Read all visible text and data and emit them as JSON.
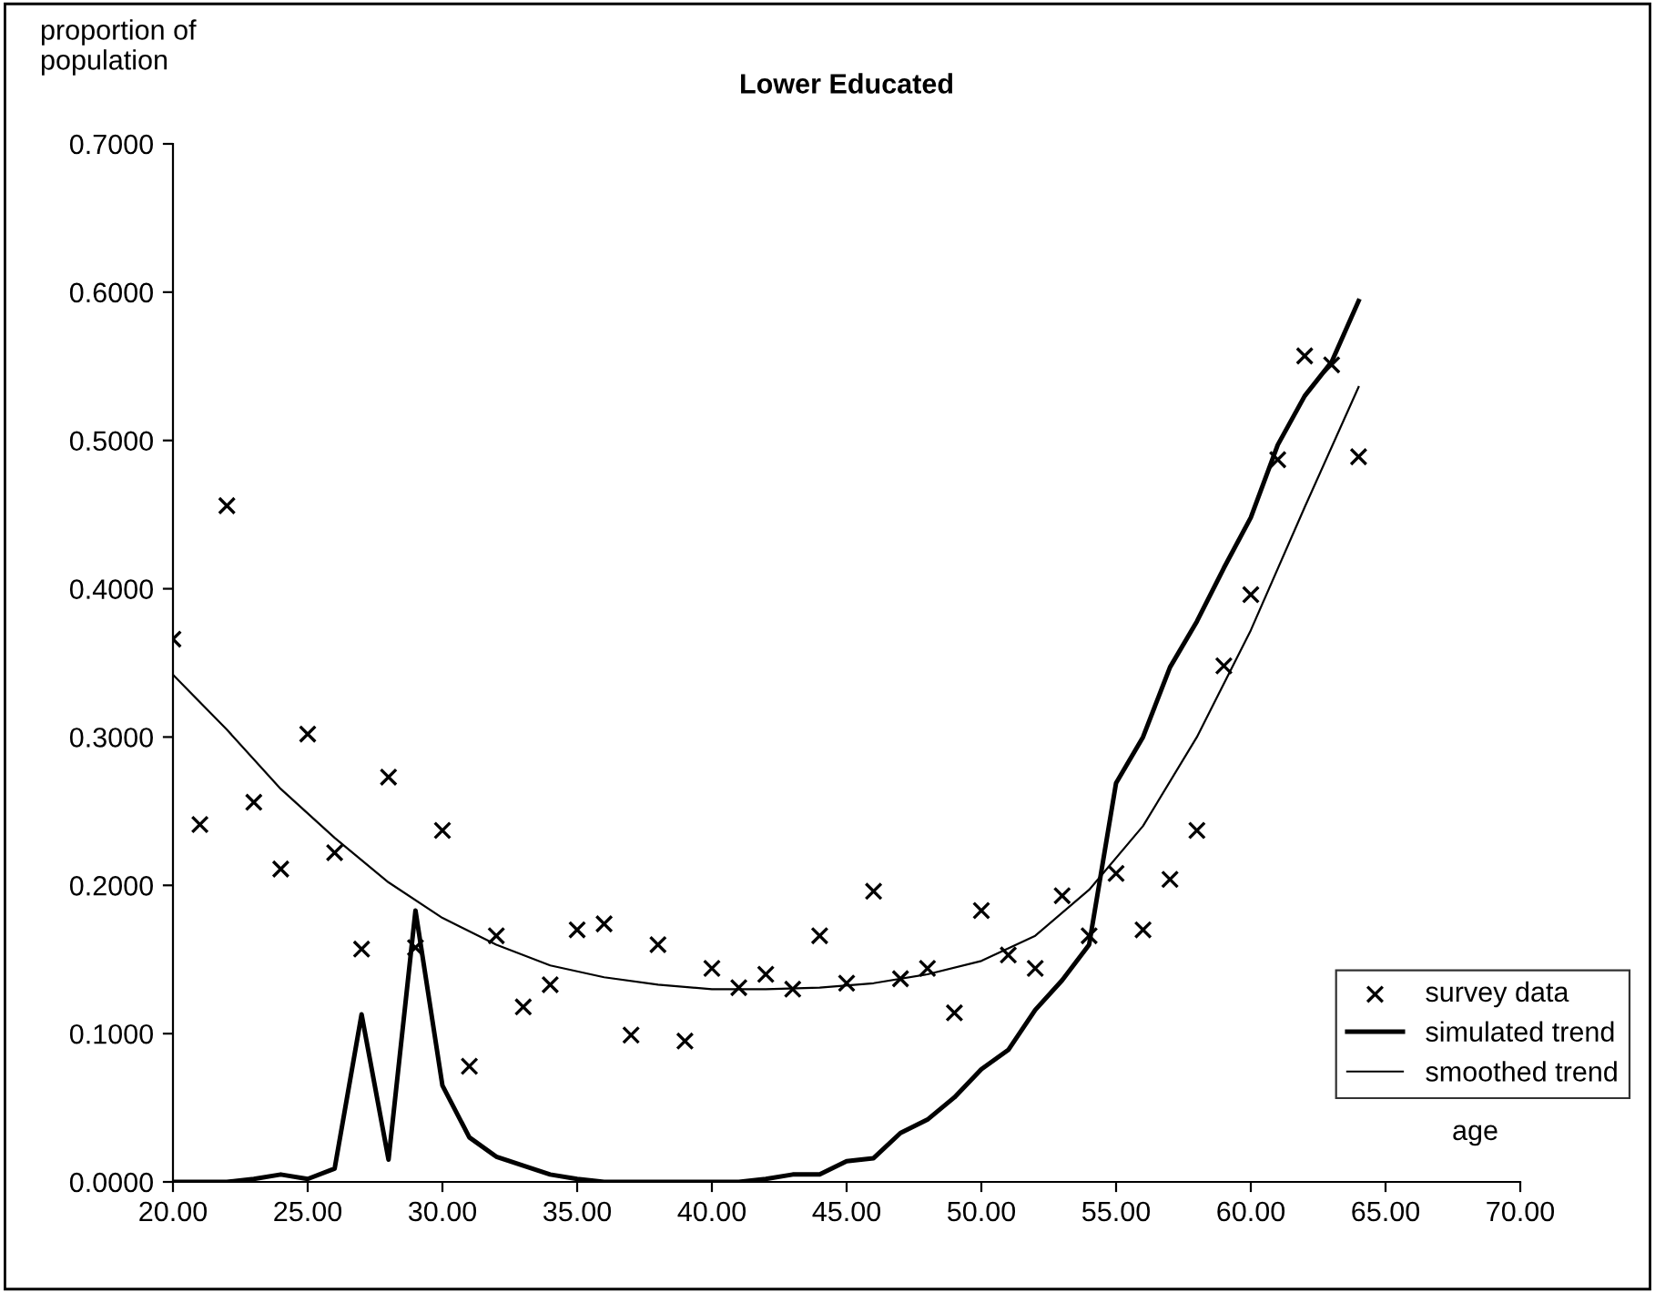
{
  "chart_data": {
    "type": "line",
    "title": "Lower Educated",
    "xlabel": "age",
    "ylabel": "proportion of population",
    "xlim": [
      20,
      70
    ],
    "xticks": [
      {
        "value": 20,
        "label": "20.00"
      },
      {
        "value": 25,
        "label": "25.00"
      },
      {
        "value": 30,
        "label": "30.00"
      },
      {
        "value": 35,
        "label": "35.00"
      },
      {
        "value": 40,
        "label": "40.00"
      },
      {
        "value": 45,
        "label": "45.00"
      },
      {
        "value": 50,
        "label": "50.00"
      },
      {
        "value": 55,
        "label": "55.00"
      },
      {
        "value": 60,
        "label": "60.00"
      },
      {
        "value": 65,
        "label": "65.00"
      },
      {
        "value": 70,
        "label": "70.00"
      }
    ],
    "ylim": [
      0,
      0.7
    ],
    "yticks": [
      {
        "value": 0,
        "label": "0.0000"
      },
      {
        "value": 0.1,
        "label": "0.1000"
      },
      {
        "value": 0.2,
        "label": "0.2000"
      },
      {
        "value": 0.3,
        "label": "0.3000"
      },
      {
        "value": 0.4,
        "label": "0.4000"
      },
      {
        "value": 0.5,
        "label": "0.5000"
      },
      {
        "value": 0.6,
        "label": "0.6000"
      },
      {
        "value": 0.7,
        "label": "0.7000"
      }
    ],
    "grid": false,
    "legend": "bottom right",
    "series": [
      {
        "name": "survey data",
        "type": "scatter",
        "marker": "cross",
        "color": "#000000",
        "x": [
          20,
          21,
          22,
          23,
          24,
          25,
          26,
          27,
          28,
          29,
          30,
          31,
          32,
          33,
          34,
          35,
          36,
          37,
          38,
          39,
          40,
          41,
          42,
          43,
          44,
          45,
          46,
          47,
          48,
          49,
          50,
          51,
          52,
          53,
          54,
          55,
          56,
          57,
          58,
          59,
          60,
          61,
          62,
          63,
          64
        ],
        "values": [
          0.366,
          0.241,
          0.456,
          0.256,
          0.211,
          0.302,
          0.222,
          0.157,
          0.273,
          0.158,
          0.237,
          0.078,
          0.166,
          0.118,
          0.133,
          0.17,
          0.174,
          0.099,
          0.16,
          0.095,
          0.144,
          0.131,
          0.14,
          0.13,
          0.166,
          0.134,
          0.196,
          0.137,
          0.144,
          0.114,
          0.183,
          0.153,
          0.144,
          0.193,
          0.166,
          0.208,
          0.17,
          0.204,
          0.237,
          0.348,
          0.396,
          0.487,
          0.557,
          0.551,
          0.489
        ]
      },
      {
        "name": "simulated trend",
        "color": "#000000",
        "x": [
          20,
          21,
          22,
          23,
          24,
          25,
          26,
          27,
          28,
          29,
          30,
          31,
          32,
          33,
          34,
          35,
          36,
          37,
          38,
          39,
          40,
          41,
          42,
          43,
          44,
          45,
          46,
          47,
          48,
          49,
          50,
          51,
          52,
          53,
          54,
          55,
          56,
          57,
          58,
          59,
          60,
          61,
          62,
          63,
          64
        ],
        "values": [
          0,
          0,
          0,
          0.002,
          0.005,
          0.002,
          0.009,
          0.113,
          0.015,
          0.183,
          0.065,
          0.03,
          0.017,
          0.011,
          0.005,
          0.002,
          0,
          0,
          0,
          0,
          0,
          0,
          0.002,
          0.005,
          0.005,
          0.014,
          0.016,
          0.033,
          0.042,
          0.057,
          0.076,
          0.089,
          0.116,
          0.136,
          0.16,
          0.269,
          0.3,
          0.347,
          0.378,
          0.414,
          0.448,
          0.497,
          0.53,
          0.553,
          0.594
        ]
      },
      {
        "name": "smoothed trend",
        "color": "#000000",
        "x": [
          20,
          22,
          24,
          26,
          28,
          30,
          32,
          34,
          36,
          38,
          40,
          42,
          44,
          46,
          48,
          50,
          52,
          54,
          56,
          58,
          60,
          62,
          64
        ],
        "values": [
          0.342,
          0.305,
          0.265,
          0.232,
          0.202,
          0.178,
          0.16,
          0.146,
          0.138,
          0.133,
          0.13,
          0.13,
          0.131,
          0.134,
          0.14,
          0.149,
          0.166,
          0.197,
          0.24,
          0.3,
          0.372,
          0.455,
          0.536
        ]
      }
    ]
  }
}
